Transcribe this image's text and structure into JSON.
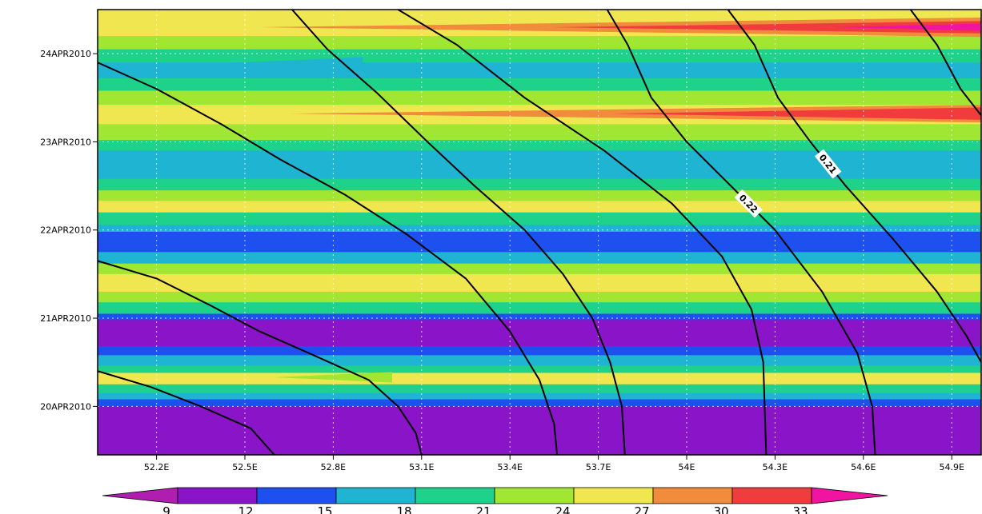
{
  "chart_data": {
    "type": "heatmap",
    "title": "",
    "xlabel": "",
    "ylabel": "",
    "x_ticks": [
      "52.2E",
      "52.5E",
      "52.8E",
      "53.1E",
      "53.4E",
      "53.7E",
      "54E",
      "54.3E",
      "54.6E",
      "54.9E"
    ],
    "x_tick_values": [
      52.2,
      52.5,
      52.8,
      53.1,
      53.4,
      53.7,
      54.0,
      54.3,
      54.6,
      54.9
    ],
    "xlim": [
      52.0,
      55.0
    ],
    "y_ticks": [
      "20APR2010",
      "21APR2010",
      "22APR2010",
      "23APR2010",
      "24APR2010"
    ],
    "y_tick_values": [
      0,
      1,
      2,
      3,
      4
    ],
    "ylim": [
      -0.55,
      4.5
    ],
    "grid": true,
    "colorbar": {
      "levels": [
        9,
        12,
        15,
        18,
        21,
        24,
        27,
        30,
        33
      ],
      "labels": [
        "9",
        "12",
        "15",
        "18",
        "21",
        "24",
        "27",
        "30",
        "33"
      ],
      "colors": [
        "#b01eb0",
        "#8a14c8",
        "#1e50f0",
        "#1eb4d2",
        "#1ed28c",
        "#a0e632",
        "#f0e650",
        "#f08c3c",
        "#f03c3c",
        "#f014a0"
      ],
      "placement": "bottom"
    },
    "bands": [
      {
        "y0": 4.2,
        "y1": 4.5,
        "level": 6
      },
      {
        "y0": 4.05,
        "y1": 4.2,
        "level": 5
      },
      {
        "y0": 3.9,
        "y1": 4.05,
        "level": 4
      },
      {
        "y0": 3.72,
        "y1": 3.9,
        "level": 3
      },
      {
        "y0": 3.58,
        "y1": 3.72,
        "level": 4
      },
      {
        "y0": 3.42,
        "y1": 3.58,
        "level": 5
      },
      {
        "y0": 3.2,
        "y1": 3.42,
        "level": 6
      },
      {
        "y0": 3.02,
        "y1": 3.2,
        "level": 5
      },
      {
        "y0": 2.9,
        "y1": 3.02,
        "level": 4
      },
      {
        "y0": 2.58,
        "y1": 2.9,
        "level": 3
      },
      {
        "y0": 2.45,
        "y1": 2.58,
        "level": 4
      },
      {
        "y0": 2.33,
        "y1": 2.45,
        "level": 5
      },
      {
        "y0": 2.2,
        "y1": 2.33,
        "level": 6
      },
      {
        "y0": 2.06,
        "y1": 2.2,
        "level": 4
      },
      {
        "y0": 1.98,
        "y1": 2.06,
        "level": 3
      },
      {
        "y0": 1.75,
        "y1": 1.98,
        "level": 2
      },
      {
        "y0": 1.62,
        "y1": 1.75,
        "level": 3
      },
      {
        "y0": 1.5,
        "y1": 1.62,
        "level": 5
      },
      {
        "y0": 1.3,
        "y1": 1.5,
        "level": 6
      },
      {
        "y0": 1.18,
        "y1": 1.3,
        "level": 5
      },
      {
        "y0": 1.05,
        "y1": 1.18,
        "level": 4
      },
      {
        "y0": 0.98,
        "y1": 1.05,
        "level": 2
      },
      {
        "y0": 0.68,
        "y1": 0.98,
        "level": 1
      },
      {
        "y0": 0.58,
        "y1": 0.68,
        "level": 2
      },
      {
        "y0": 0.46,
        "y1": 0.58,
        "level": 3
      },
      {
        "y0": 0.38,
        "y1": 0.46,
        "level": 4
      },
      {
        "y0": 0.25,
        "y1": 0.38,
        "level": 6
      },
      {
        "y0": 0.15,
        "y1": 0.25,
        "level": 4
      },
      {
        "y0": 0.08,
        "y1": 0.15,
        "level": 3
      },
      {
        "y0": 0.0,
        "y1": 0.08,
        "level": 2
      },
      {
        "y0": -0.55,
        "y1": 0.0,
        "level": 1
      }
    ],
    "tongues": [
      {
        "y": 4.3,
        "half": 0.11,
        "x_tip": 52.55,
        "x_end": 55.0,
        "level": 7
      },
      {
        "y": 4.3,
        "half": 0.07,
        "x_tip": 53.55,
        "x_end": 55.0,
        "level": 8
      },
      {
        "y": 4.3,
        "half": 0.04,
        "x_tip": 54.5,
        "x_end": 55.0,
        "level": 9
      },
      {
        "y": 3.88,
        "half": 0.08,
        "x_tip": 52.35,
        "x_end": 52.9,
        "level": 3
      },
      {
        "y": 3.32,
        "half": 0.1,
        "x_tip": 52.65,
        "x_end": 55.0,
        "level": 7
      },
      {
        "y": 3.32,
        "half": 0.07,
        "x_tip": 53.75,
        "x_end": 55.0,
        "level": 8
      },
      {
        "y": 0.33,
        "half": 0.06,
        "x_tip": 52.6,
        "x_end": 53.0,
        "level": 5
      }
    ],
    "contours": [
      {
        "label": "",
        "points": [
          [
            53.02,
            4.5
          ],
          [
            53.22,
            4.1
          ],
          [
            53.45,
            3.5
          ],
          [
            53.72,
            2.9
          ],
          [
            53.95,
            2.3
          ],
          [
            54.12,
            1.7
          ],
          [
            54.22,
            1.1
          ],
          [
            54.26,
            0.5
          ],
          [
            54.27,
            -0.55
          ]
        ]
      },
      {
        "label": "0.22",
        "points": [
          [
            53.73,
            4.5
          ],
          [
            53.8,
            4.1
          ],
          [
            53.88,
            3.5
          ],
          [
            54.0,
            3.0
          ],
          [
            54.12,
            2.6
          ],
          [
            54.3,
            2.0
          ],
          [
            54.46,
            1.3
          ],
          [
            54.58,
            0.6
          ],
          [
            54.63,
            0.0
          ],
          [
            54.64,
            -0.55
          ]
        ]
      },
      {
        "label": "0.21",
        "points": [
          [
            54.14,
            4.5
          ],
          [
            54.23,
            4.1
          ],
          [
            54.31,
            3.5
          ],
          [
            54.42,
            3.0
          ],
          [
            54.54,
            2.5
          ],
          [
            54.7,
            1.9
          ],
          [
            54.85,
            1.3
          ],
          [
            54.95,
            0.8
          ],
          [
            55.0,
            0.5
          ]
        ]
      },
      {
        "label": "",
        "points": [
          [
            54.76,
            4.5
          ],
          [
            54.85,
            4.1
          ],
          [
            54.93,
            3.6
          ],
          [
            55.0,
            3.3
          ]
        ]
      },
      {
        "label": "",
        "points": [
          [
            52.66,
            4.5
          ],
          [
            52.78,
            4.05
          ],
          [
            52.95,
            3.55
          ],
          [
            53.12,
            3.0
          ],
          [
            53.28,
            2.5
          ],
          [
            53.45,
            2.0
          ],
          [
            53.58,
            1.5
          ],
          [
            53.68,
            1.0
          ],
          [
            53.74,
            0.5
          ],
          [
            53.78,
            0.0
          ],
          [
            53.79,
            -0.55
          ]
        ]
      },
      {
        "label": "",
        "points": [
          [
            52.0,
            3.9
          ],
          [
            52.2,
            3.6
          ],
          [
            52.42,
            3.2
          ],
          [
            52.62,
            2.8
          ],
          [
            52.84,
            2.4
          ],
          [
            53.05,
            1.95
          ],
          [
            53.25,
            1.45
          ],
          [
            53.4,
            0.85
          ],
          [
            53.5,
            0.3
          ],
          [
            53.55,
            -0.2
          ],
          [
            53.56,
            -0.55
          ]
        ]
      },
      {
        "label": "",
        "points": [
          [
            52.0,
            1.65
          ],
          [
            52.2,
            1.45
          ],
          [
            52.38,
            1.15
          ],
          [
            52.55,
            0.85
          ],
          [
            52.72,
            0.6
          ],
          [
            52.92,
            0.3
          ],
          [
            53.02,
            0.0
          ],
          [
            53.08,
            -0.3
          ],
          [
            53.1,
            -0.55
          ]
        ]
      },
      {
        "label": "",
        "points": [
          [
            52.0,
            0.4
          ],
          [
            52.18,
            0.22
          ],
          [
            52.35,
            0.0
          ],
          [
            52.52,
            -0.25
          ],
          [
            52.6,
            -0.55
          ]
        ]
      }
    ]
  }
}
